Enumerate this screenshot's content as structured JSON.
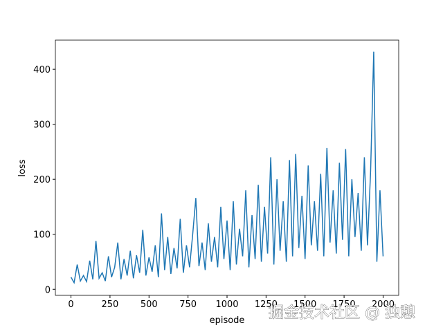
{
  "chart_data": {
    "type": "line",
    "xlabel": "episode",
    "ylabel": "loss",
    "x": [
      0,
      20,
      40,
      60,
      80,
      100,
      120,
      140,
      160,
      180,
      200,
      220,
      240,
      260,
      280,
      300,
      320,
      340,
      360,
      380,
      400,
      420,
      440,
      460,
      480,
      500,
      520,
      540,
      560,
      580,
      600,
      620,
      640,
      660,
      680,
      700,
      720,
      740,
      760,
      780,
      800,
      820,
      840,
      860,
      880,
      900,
      920,
      940,
      960,
      980,
      1000,
      1020,
      1040,
      1060,
      1080,
      1100,
      1120,
      1140,
      1160,
      1180,
      1200,
      1220,
      1240,
      1260,
      1280,
      1300,
      1320,
      1340,
      1360,
      1380,
      1400,
      1420,
      1440,
      1460,
      1480,
      1500,
      1520,
      1540,
      1560,
      1580,
      1600,
      1620,
      1640,
      1660,
      1680,
      1700,
      1720,
      1740,
      1760,
      1780,
      1800,
      1820,
      1840,
      1860,
      1880,
      1900,
      1920,
      1940,
      1960,
      1980,
      2000
    ],
    "series": [
      {
        "color": "#1f77b4",
        "values": [
          22,
          12,
          45,
          15,
          25,
          14,
          52,
          18,
          88,
          20,
          30,
          15,
          60,
          22,
          40,
          85,
          18,
          55,
          25,
          70,
          20,
          62,
          30,
          108,
          25,
          58,
          32,
          80,
          22,
          138,
          35,
          95,
          28,
          75,
          38,
          128,
          30,
          80,
          40,
          100,
          166,
          42,
          85,
          35,
          120,
          50,
          95,
          40,
          150,
          55,
          125,
          35,
          160,
          45,
          110,
          60,
          180,
          40,
          135,
          55,
          190,
          50,
          150,
          65,
          240,
          45,
          200,
          70,
          160,
          50,
          235,
          60,
          246,
          75,
          170,
          55,
          225,
          80,
          160,
          70,
          210,
          60,
          257,
          85,
          180,
          65,
          230,
          90,
          255,
          60,
          200,
          95,
          175,
          70,
          240,
          80,
          215,
          432,
          50,
          180,
          60
        ]
      }
    ],
    "xlim": [
      -100,
      2100
    ],
    "ylim": [
      -11,
      453
    ],
    "xticks": [
      0,
      250,
      500,
      750,
      1000,
      1250,
      1500,
      1750,
      2000
    ],
    "yticks": [
      0,
      100,
      200,
      300,
      400
    ],
    "watermark": "掘金技术社区 @ 独憩"
  }
}
